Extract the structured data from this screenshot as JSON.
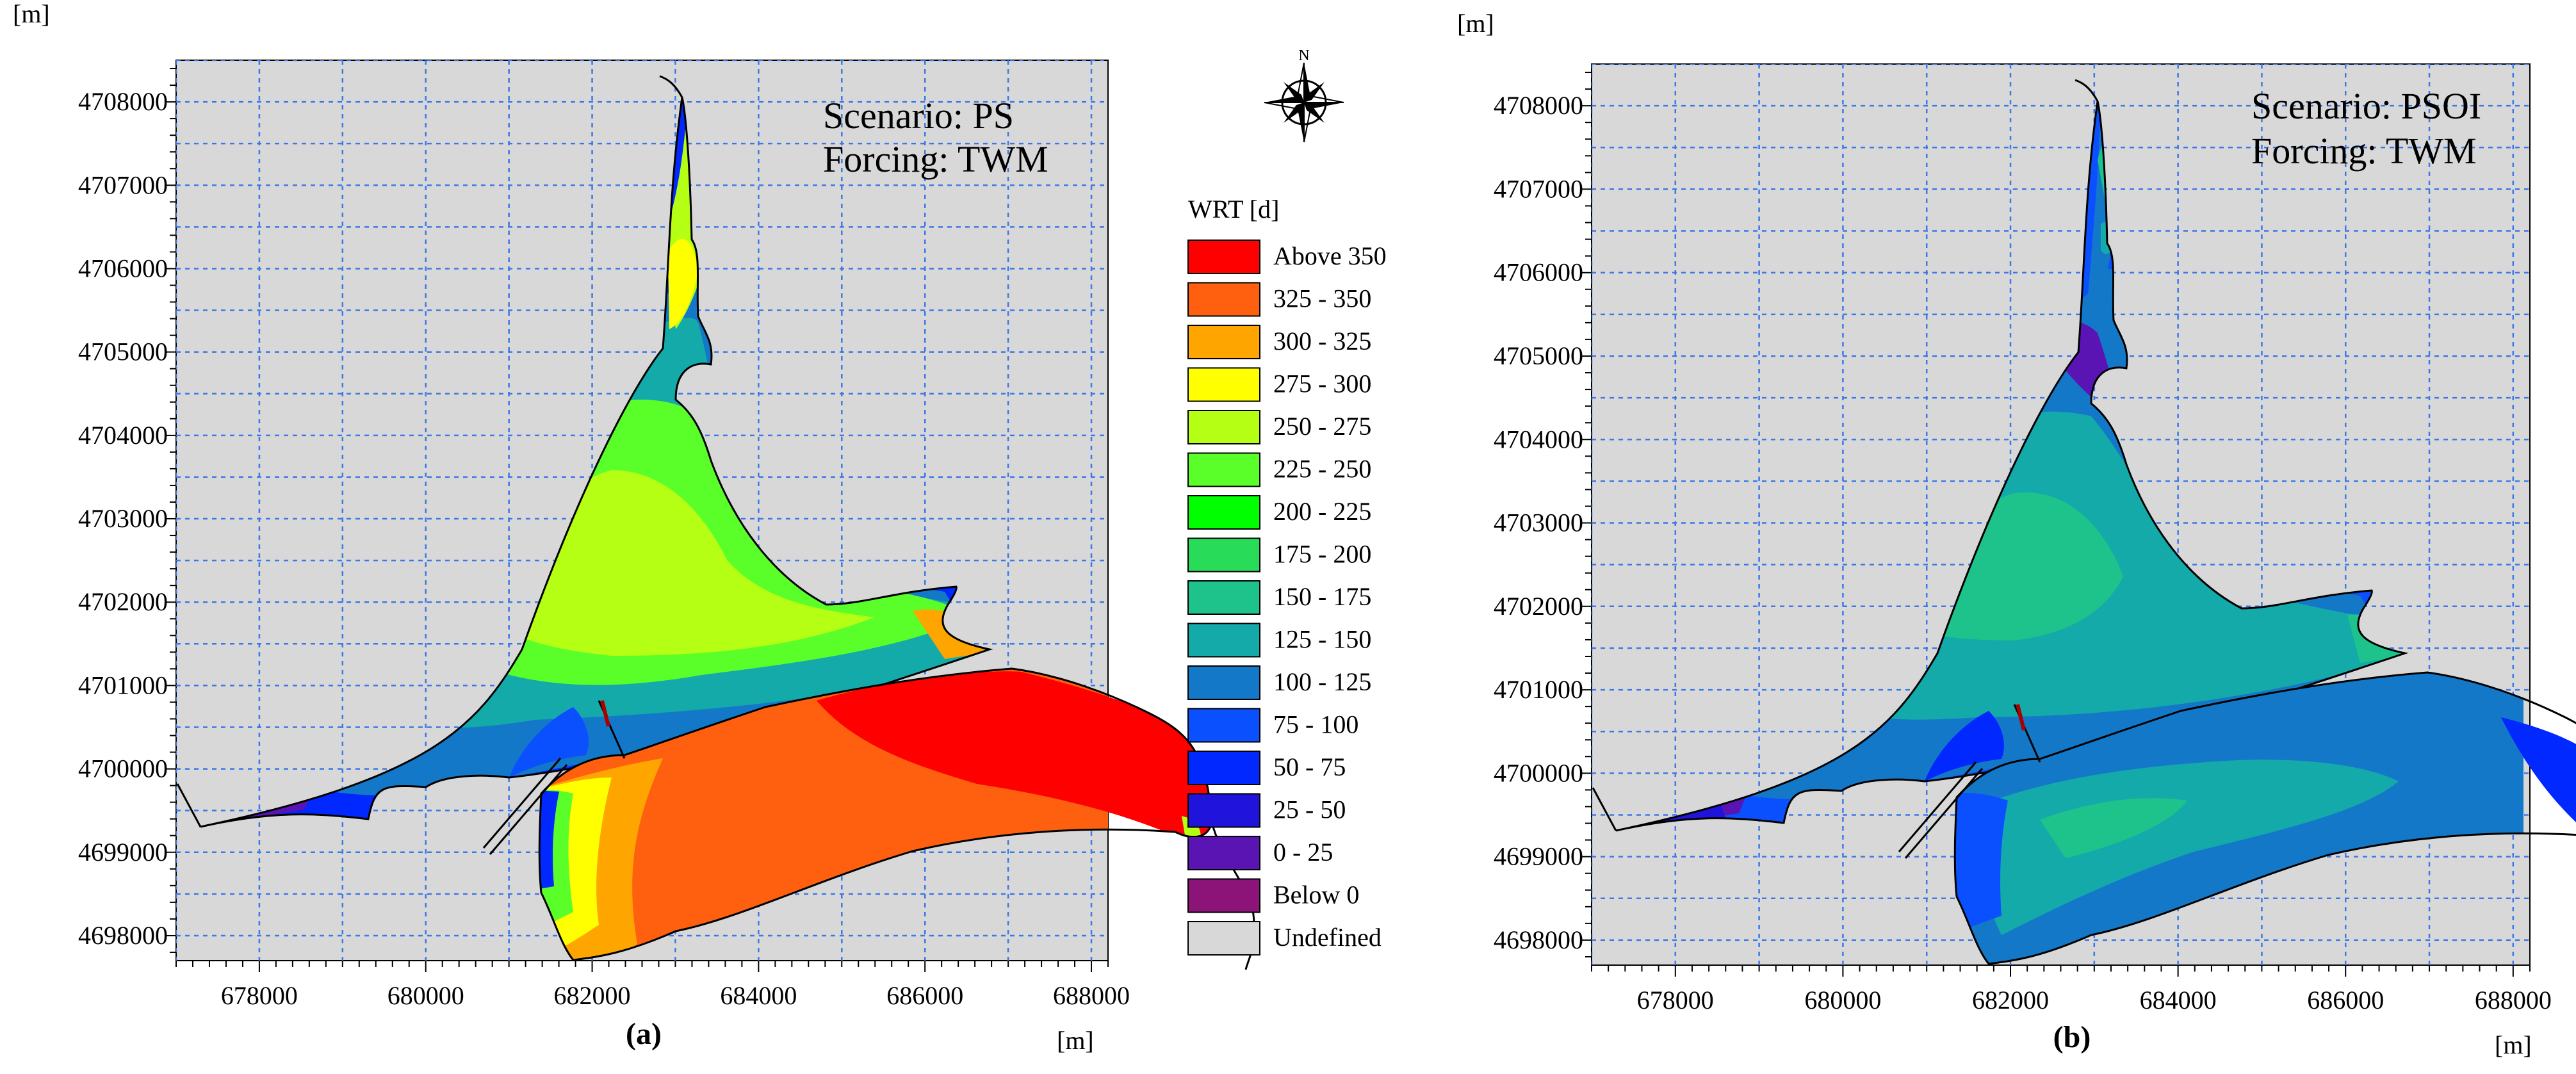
{
  "figure": {
    "panels": [
      {
        "id": "a",
        "caption": "(a)",
        "unit_y": "[m]",
        "unit_x": "[m]",
        "scenario_text": "Scenario: PS",
        "forcing_text": "Forcing: TWM",
        "x_ticks": [
          "678000",
          "680000",
          "682000",
          "684000",
          "686000",
          "688000"
        ],
        "y_ticks": [
          "4708000",
          "4707000",
          "4706000",
          "4705000",
          "4704000",
          "4703000",
          "4702000",
          "4701000",
          "4700000",
          "4699000",
          "4698000"
        ]
      },
      {
        "id": "b",
        "caption": "(b)",
        "unit_y": "[m]",
        "unit_x": "[m]",
        "scenario_text": "Scenario: PSOI",
        "forcing_text": "Forcing: TWM",
        "x_ticks": [
          "678000",
          "680000",
          "682000",
          "684000",
          "686000",
          "688000"
        ],
        "y_ticks": [
          "4708000",
          "4707000",
          "4706000",
          "4705000",
          "4704000",
          "4703000",
          "4702000",
          "4701000",
          "4700000",
          "4699000",
          "4698000"
        ]
      }
    ],
    "compass_label": "N",
    "legend": {
      "title": "WRT [d]",
      "items": [
        {
          "label": "Above 350",
          "color": "#ff0000"
        },
        {
          "label": "325 - 350",
          "color": "#ff6010"
        },
        {
          "label": "300 - 325",
          "color": "#ffa500"
        },
        {
          "label": "275 - 300",
          "color": "#ffff00"
        },
        {
          "label": "250 - 275",
          "color": "#b4ff14"
        },
        {
          "label": "225 - 250",
          "color": "#5aff2a"
        },
        {
          "label": "200 - 225",
          "color": "#00ff00"
        },
        {
          "label": "175 - 200",
          "color": "#28dc5a"
        },
        {
          "label": "150 - 175",
          "color": "#1ec38c"
        },
        {
          "label": "125 - 150",
          "color": "#14aaaa"
        },
        {
          "label": "100 - 125",
          "color": "#1478c8"
        },
        {
          "label": "75 - 100",
          "color": "#0a50ff"
        },
        {
          "label": "50 -  75",
          "color": "#0028ff"
        },
        {
          "label": "25 -  50",
          "color": "#2014dc"
        },
        {
          "label": "0 -  25",
          "color": "#5a14b4"
        },
        {
          "label": "Below    0",
          "color": "#8c1478"
        },
        {
          "label": "Undefined",
          "color": "#d8d8d8"
        }
      ]
    }
  },
  "chart_data": [
    {
      "type": "heatmap",
      "title": "Scenario: PS, Forcing: TWM",
      "xlabel": "[m]",
      "ylabel": "[m]",
      "xlim": [
        677000,
        688200
      ],
      "ylim": [
        4697700,
        4708500
      ],
      "x_ticks": [
        678000,
        680000,
        682000,
        684000,
        686000,
        688000
      ],
      "y_ticks": [
        4698000,
        4699000,
        4700000,
        4701000,
        4702000,
        4703000,
        4704000,
        4705000,
        4706000,
        4707000,
        4708000
      ],
      "grid": true,
      "legend": "WRT [d]",
      "regions": [
        {
          "area": "north channel",
          "range": "250 - 300"
        },
        {
          "area": "north basin center",
          "range": "250 - 275"
        },
        {
          "area": "north basin west edge",
          "range": "0 - 100"
        },
        {
          "area": "east arm of north basin",
          "range": "225 - 275"
        },
        {
          "area": "south basin",
          "range": "325 - 350"
        },
        {
          "area": "south basin east",
          "range": "Above 350"
        },
        {
          "area": "south basin inlet",
          "range": "50 - 300"
        }
      ]
    },
    {
      "type": "heatmap",
      "title": "Scenario: PSOI, Forcing: TWM",
      "xlabel": "[m]",
      "ylabel": "[m]",
      "xlim": [
        677000,
        688200
      ],
      "ylim": [
        4697700,
        4708500
      ],
      "x_ticks": [
        678000,
        680000,
        682000,
        684000,
        686000,
        688000
      ],
      "y_ticks": [
        4698000,
        4699000,
        4700000,
        4701000,
        4702000,
        4703000,
        4704000,
        4705000,
        4706000,
        4707000,
        4708000
      ],
      "grid": true,
      "legend": "WRT [d]",
      "regions": [
        {
          "area": "north channel",
          "range": "0 - 150"
        },
        {
          "area": "north basin center",
          "range": "125 - 175"
        },
        {
          "area": "north basin west edge",
          "range": "0 - 75"
        },
        {
          "area": "east arm of north basin",
          "range": "125 - 175"
        },
        {
          "area": "south basin",
          "range": "100 - 150"
        },
        {
          "area": "south basin east",
          "range": "0 - 100"
        },
        {
          "area": "south basin inlet",
          "range": "75 - 125"
        }
      ]
    }
  ]
}
